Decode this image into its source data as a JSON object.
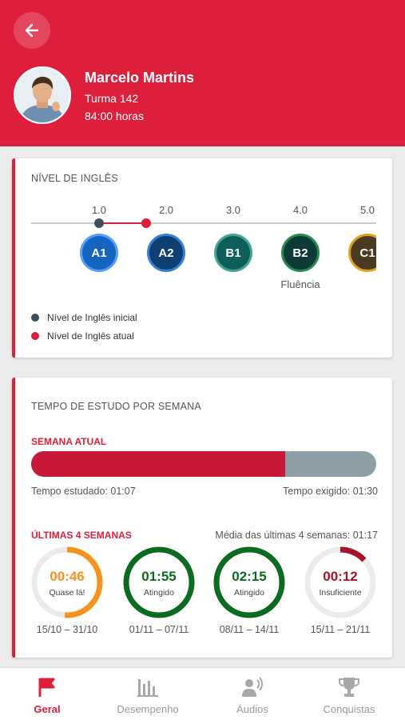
{
  "header": {
    "user_name": "Marcelo Martins",
    "class_label": "Turma 142",
    "hours": "84:00 horas"
  },
  "english_level": {
    "title": "NÍVEL DE INGLÊS",
    "ticks": [
      "1.0",
      "2.0",
      "3.0",
      "4.0",
      "5.0"
    ],
    "initial_value": 1.0,
    "current_value": 1.7,
    "levels": [
      {
        "code": "A1",
        "color": "#1565c0",
        "ring": "#5b9ef5"
      },
      {
        "code": "A2",
        "color": "#0d3f73",
        "ring": "#3a7fd0"
      },
      {
        "code": "B1",
        "color": "#0e5e5b",
        "ring": "#46a58f"
      },
      {
        "code": "B2",
        "color": "#0c3a36",
        "ring": "#2a8a52"
      },
      {
        "code": "C1",
        "color": "#4a3a22",
        "ring": "#e0a020"
      }
    ],
    "b2_note": "Fluência",
    "legend_initial": "Nível de Inglês inicial",
    "legend_current": "Nível de Inglês atual",
    "initial_color": "#3d4f5c",
    "current_color": "#dd1f3c"
  },
  "study_time": {
    "title": "TEMPO DE ESTUDO POR SEMANA",
    "current_week_label": "SEMANA ATUAL",
    "progress_fraction": 0.737,
    "studied": "Tempo estudado: 01:07",
    "required": "Tempo exigido: 01:30",
    "last_weeks_label": "ÚLTIMAS 4 SEMANAS",
    "average": "Média das últimas 4 semanas: 01:17",
    "weeks": [
      {
        "time": "00:46",
        "status": "Quase lá!",
        "range": "15/10 – 31/10",
        "fraction": 0.51,
        "color": "#f6921e"
      },
      {
        "time": "01:55",
        "status": "Atingido",
        "range": "01/11 – 07/11",
        "fraction": 1.0,
        "color": "#0b6b1f"
      },
      {
        "time": "02:15",
        "status": "Atingido",
        "range": "08/11 – 14/11",
        "fraction": 1.0,
        "color": "#0b6b1f"
      },
      {
        "time": "00:12",
        "status": "Insuficiente",
        "range": "15/11 – 21/11",
        "fraction": 0.13,
        "color": "#a5142a"
      }
    ]
  },
  "nav": {
    "items": [
      {
        "label": "Geral",
        "icon": "flag-icon"
      },
      {
        "label": "Desempenho",
        "icon": "bar-chart-icon"
      },
      {
        "label": "Áudios",
        "icon": "speaking-person-icon"
      },
      {
        "label": "Conquistas",
        "icon": "trophy-icon"
      }
    ],
    "active_color": "#dd1f3c",
    "inactive_color": "#a8a8a8"
  }
}
